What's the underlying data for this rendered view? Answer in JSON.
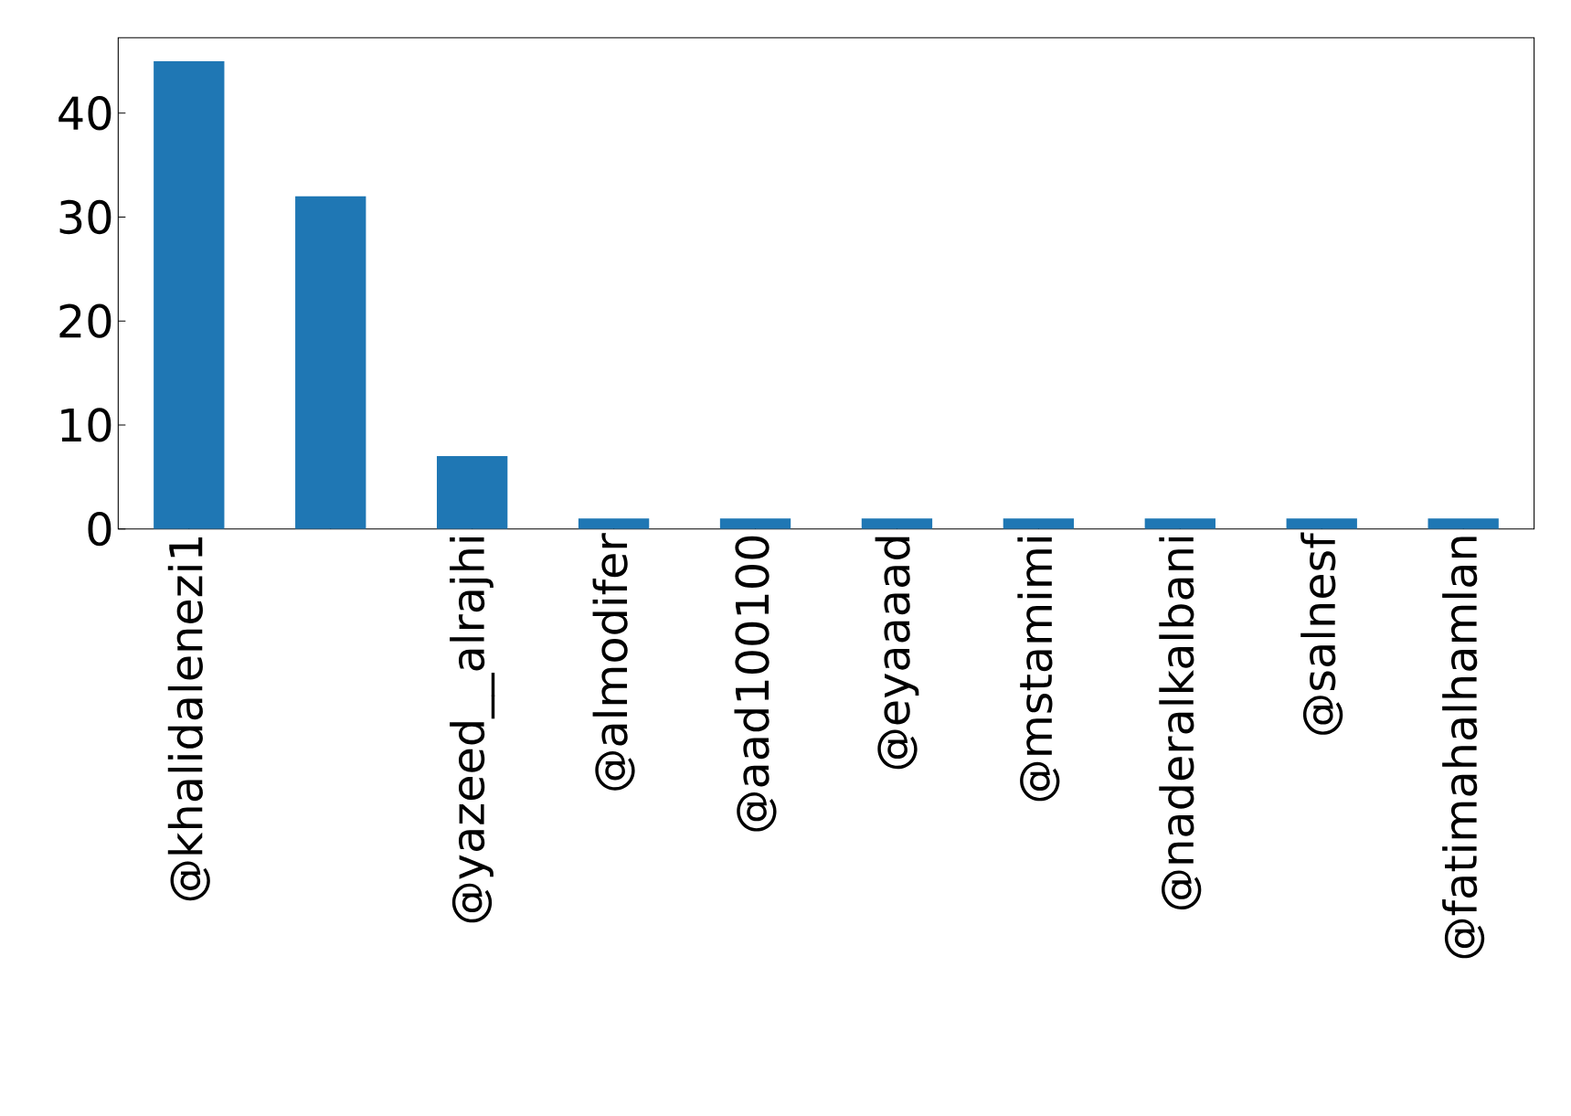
{
  "chart_data": {
    "type": "bar",
    "categories": [
      "@khalidalenezi1",
      null,
      "@yazeed__alrajhi",
      "@almodifer",
      "@aad100100",
      "@eyaaaad",
      "@mstamimi",
      "@naderalkalbani",
      "@salnesf",
      "@fatimahalhamlan"
    ],
    "values": [
      45,
      32,
      7,
      1,
      1,
      1,
      1,
      1,
      1,
      1
    ],
    "color": "#1f77b4",
    "ylim": [
      0,
      47.25
    ],
    "yticks": [
      0,
      10,
      20,
      30,
      40
    ],
    "grid": false
  }
}
